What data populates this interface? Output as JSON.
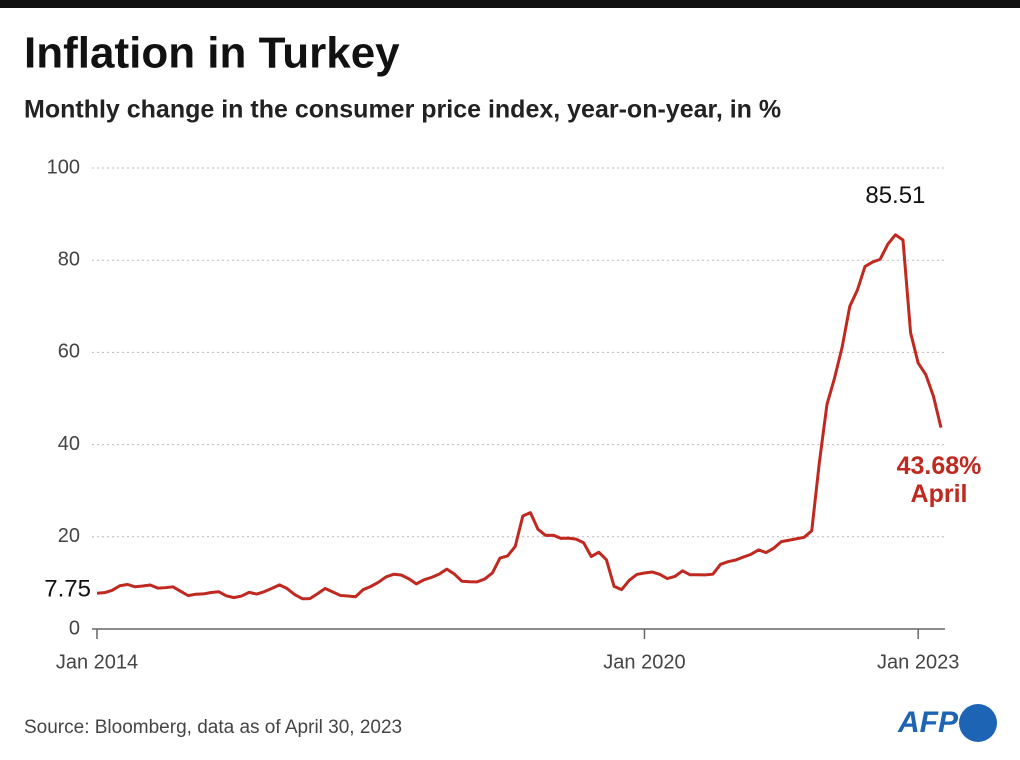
{
  "chart_data": {
    "type": "line",
    "title": "Inflation in Turkey",
    "subtitle": "Monthly change in the consumer price index, year-on-year, in %",
    "source": "Source: Bloomberg, data as of April 30, 2023",
    "logo": "AFP",
    "x": [
      "2014-01",
      "2014-02",
      "2014-03",
      "2014-04",
      "2014-05",
      "2014-06",
      "2014-07",
      "2014-08",
      "2014-09",
      "2014-10",
      "2014-11",
      "2014-12",
      "2015-01",
      "2015-02",
      "2015-03",
      "2015-04",
      "2015-05",
      "2015-06",
      "2015-07",
      "2015-08",
      "2015-09",
      "2015-10",
      "2015-11",
      "2015-12",
      "2016-01",
      "2016-02",
      "2016-03",
      "2016-04",
      "2016-05",
      "2016-06",
      "2016-07",
      "2016-08",
      "2016-09",
      "2016-10",
      "2016-11",
      "2016-12",
      "2017-01",
      "2017-02",
      "2017-03",
      "2017-04",
      "2017-05",
      "2017-06",
      "2017-07",
      "2017-08",
      "2017-09",
      "2017-10",
      "2017-11",
      "2017-12",
      "2018-01",
      "2018-02",
      "2018-03",
      "2018-04",
      "2018-05",
      "2018-06",
      "2018-07",
      "2018-08",
      "2018-09",
      "2018-10",
      "2018-11",
      "2018-12",
      "2019-01",
      "2019-02",
      "2019-03",
      "2019-04",
      "2019-05",
      "2019-06",
      "2019-07",
      "2019-08",
      "2019-09",
      "2019-10",
      "2019-11",
      "2019-12",
      "2020-01",
      "2020-02",
      "2020-03",
      "2020-04",
      "2020-05",
      "2020-06",
      "2020-07",
      "2020-08",
      "2020-09",
      "2020-10",
      "2020-11",
      "2020-12",
      "2021-01",
      "2021-02",
      "2021-03",
      "2021-04",
      "2021-05",
      "2021-06",
      "2021-07",
      "2021-08",
      "2021-09",
      "2021-10",
      "2021-11",
      "2021-12",
      "2022-01",
      "2022-02",
      "2022-03",
      "2022-04",
      "2022-05",
      "2022-06",
      "2022-07",
      "2022-08",
      "2022-09",
      "2022-10",
      "2022-11",
      "2022-12",
      "2023-01",
      "2023-02",
      "2023-03",
      "2023-04"
    ],
    "series": [
      {
        "name": "CPI year-on-year",
        "color": "#c0291f",
        "values": [
          7.75,
          7.89,
          8.39,
          9.38,
          9.66,
          9.16,
          9.32,
          9.54,
          8.86,
          8.96,
          9.15,
          8.17,
          7.24,
          7.55,
          7.61,
          7.91,
          8.09,
          7.2,
          6.81,
          7.14,
          7.95,
          7.58,
          8.1,
          8.81,
          9.58,
          8.78,
          7.46,
          6.57,
          6.58,
          7.64,
          8.79,
          8.05,
          7.28,
          7.16,
          7,
          8.53,
          9.22,
          10.13,
          11.29,
          11.87,
          11.72,
          10.9,
          9.79,
          10.68,
          11.2,
          11.9,
          12.98,
          11.92,
          10.35,
          10.26,
          10.23,
          10.85,
          12.15,
          15.39,
          15.85,
          17.9,
          24.52,
          25.24,
          21.62,
          20.3,
          20.35,
          19.67,
          19.71,
          19.5,
          18.71,
          15.72,
          16.65,
          15.01,
          9.26,
          8.55,
          10.56,
          11.84,
          12.15,
          12.37,
          11.86,
          10.94,
          11.39,
          12.62,
          11.76,
          11.77,
          11.75,
          11.89,
          14.03,
          14.6,
          14.97,
          15.61,
          16.19,
          17.14,
          16.59,
          17.53,
          18.95,
          19.25,
          19.58,
          19.89,
          21.31,
          36.08,
          48.69,
          54.44,
          61.14,
          69.97,
          73.5,
          78.62,
          79.6,
          80.21,
          83.45,
          85.51,
          84.39,
          64.27,
          57.68,
          55.18,
          50.51,
          43.68
        ]
      }
    ],
    "xlim": [
      "2014-01",
      "2023-04"
    ],
    "xticks": [
      {
        "value": "2014-01",
        "label": "Jan 2014"
      },
      {
        "value": "2020-01",
        "label": "Jan 2020"
      },
      {
        "value": "2023-01",
        "label": "Jan 2023"
      }
    ],
    "ylim": [
      0,
      100
    ],
    "yticks": [
      0,
      20,
      40,
      60,
      80,
      100
    ],
    "grid": true,
    "annotations": [
      {
        "x": "2014-01",
        "text": "7.75"
      },
      {
        "x": "2022-10",
        "text": "85.51"
      },
      {
        "x": "2023-04",
        "text": "43.68%"
      },
      {
        "x": "2023-04",
        "text": "April"
      }
    ]
  }
}
